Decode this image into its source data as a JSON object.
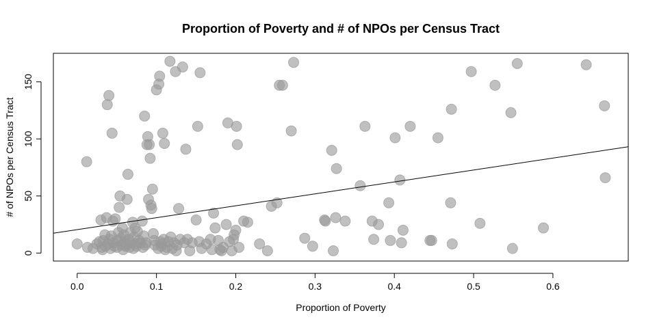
{
  "chart_data": {
    "type": "scatter",
    "title": "Proportion of Poverty and # of NPOs per Census Tract",
    "xlabel": "Proportion of Poverty",
    "ylabel": "# of NPOs per Census Tract",
    "xlim": [
      -0.03,
      0.695
    ],
    "ylim": [
      -7,
      175
    ],
    "xticks": [
      0.0,
      0.1,
      0.2,
      0.3,
      0.4,
      0.5,
      0.6
    ],
    "xtick_labels": [
      "0.0",
      "0.1",
      "0.2",
      "0.3",
      "0.4",
      "0.5",
      "0.6"
    ],
    "yticks": [
      0,
      50,
      100,
      150
    ],
    "ytick_labels": [
      "0",
      "50",
      "100",
      "150"
    ],
    "grid": false,
    "point_color": "#999999",
    "line_color": "#000000",
    "trend_line": {
      "intercept": 20.5,
      "slope": 104.5
    },
    "points": [
      [
        0.0,
        8
      ],
      [
        0.012,
        80
      ],
      [
        0.013,
        5
      ],
      [
        0.02,
        4
      ],
      [
        0.025,
        8
      ],
      [
        0.028,
        10
      ],
      [
        0.03,
        29
      ],
      [
        0.031,
        5
      ],
      [
        0.032,
        3
      ],
      [
        0.033,
        11
      ],
      [
        0.035,
        16
      ],
      [
        0.036,
        6
      ],
      [
        0.037,
        31
      ],
      [
        0.038,
        130
      ],
      [
        0.039,
        8
      ],
      [
        0.04,
        138
      ],
      [
        0.041,
        12
      ],
      [
        0.042,
        4
      ],
      [
        0.043,
        15
      ],
      [
        0.044,
        105
      ],
      [
        0.045,
        28
      ],
      [
        0.046,
        9
      ],
      [
        0.047,
        6
      ],
      [
        0.048,
        30
      ],
      [
        0.05,
        5
      ],
      [
        0.051,
        11
      ],
      [
        0.052,
        18
      ],
      [
        0.053,
        40
      ],
      [
        0.054,
        50
      ],
      [
        0.055,
        13
      ],
      [
        0.056,
        7
      ],
      [
        0.057,
        22
      ],
      [
        0.058,
        3
      ],
      [
        0.059,
        16
      ],
      [
        0.06,
        10
      ],
      [
        0.061,
        6
      ],
      [
        0.062,
        8
      ],
      [
        0.063,
        47
      ],
      [
        0.064,
        69
      ],
      [
        0.065,
        12
      ],
      [
        0.066,
        5
      ],
      [
        0.067,
        18
      ],
      [
        0.068,
        9
      ],
      [
        0.07,
        27
      ],
      [
        0.071,
        4
      ],
      [
        0.072,
        14
      ],
      [
        0.073,
        22
      ],
      [
        0.074,
        8
      ],
      [
        0.075,
        6
      ],
      [
        0.076,
        19
      ],
      [
        0.078,
        11
      ],
      [
        0.08,
        9
      ],
      [
        0.082,
        28
      ],
      [
        0.083,
        5
      ],
      [
        0.084,
        15
      ],
      [
        0.085,
        120
      ],
      [
        0.086,
        7
      ],
      [
        0.087,
        9
      ],
      [
        0.088,
        95
      ],
      [
        0.089,
        102
      ],
      [
        0.09,
        47
      ],
      [
        0.091,
        95
      ],
      [
        0.092,
        83
      ],
      [
        0.093,
        42
      ],
      [
        0.094,
        39
      ],
      [
        0.095,
        56
      ],
      [
        0.096,
        17
      ],
      [
        0.097,
        11
      ],
      [
        0.098,
        7
      ],
      [
        0.1,
        143
      ],
      [
        0.102,
        4
      ],
      [
        0.103,
        148
      ],
      [
        0.104,
        155
      ],
      [
        0.105,
        10
      ],
      [
        0.106,
        6
      ],
      [
        0.107,
        8
      ],
      [
        0.108,
        105
      ],
      [
        0.109,
        12
      ],
      [
        0.11,
        96
      ],
      [
        0.111,
        3
      ],
      [
        0.113,
        5
      ],
      [
        0.115,
        10
      ],
      [
        0.117,
        168
      ],
      [
        0.118,
        14
      ],
      [
        0.12,
        4
      ],
      [
        0.122,
        9
      ],
      [
        0.124,
        159
      ],
      [
        0.125,
        2
      ],
      [
        0.126,
        7
      ],
      [
        0.128,
        39
      ],
      [
        0.13,
        12
      ],
      [
        0.133,
        163
      ],
      [
        0.135,
        9
      ],
      [
        0.137,
        91
      ],
      [
        0.139,
        12
      ],
      [
        0.142,
        2
      ],
      [
        0.145,
        9
      ],
      [
        0.15,
        29
      ],
      [
        0.152,
        111
      ],
      [
        0.154,
        10
      ],
      [
        0.155,
        158
      ],
      [
        0.157,
        4
      ],
      [
        0.163,
        8
      ],
      [
        0.168,
        12
      ],
      [
        0.17,
        3
      ],
      [
        0.172,
        35
      ],
      [
        0.174,
        22
      ],
      [
        0.178,
        11
      ],
      [
        0.18,
        3
      ],
      [
        0.182,
        2
      ],
      [
        0.184,
        5
      ],
      [
        0.188,
        25
      ],
      [
        0.19,
        114
      ],
      [
        0.192,
        10
      ],
      [
        0.195,
        2
      ],
      [
        0.197,
        12
      ],
      [
        0.198,
        16
      ],
      [
        0.2,
        20
      ],
      [
        0.201,
        111
      ],
      [
        0.202,
        95
      ],
      [
        0.204,
        5
      ],
      [
        0.21,
        28
      ],
      [
        0.215,
        27
      ],
      [
        0.23,
        8
      ],
      [
        0.24,
        2
      ],
      [
        0.245,
        41
      ],
      [
        0.252,
        44
      ],
      [
        0.255,
        147
      ],
      [
        0.259,
        147
      ],
      [
        0.27,
        107
      ],
      [
        0.273,
        167
      ],
      [
        0.287,
        13
      ],
      [
        0.297,
        6
      ],
      [
        0.312,
        29
      ],
      [
        0.313,
        28
      ],
      [
        0.321,
        90
      ],
      [
        0.323,
        2
      ],
      [
        0.326,
        31
      ],
      [
        0.327,
        74
      ],
      [
        0.338,
        28
      ],
      [
        0.357,
        59
      ],
      [
        0.363,
        111
      ],
      [
        0.372,
        28
      ],
      [
        0.374,
        12
      ],
      [
        0.38,
        25
      ],
      [
        0.393,
        44
      ],
      [
        0.395,
        11
      ],
      [
        0.401,
        101
      ],
      [
        0.407,
        64
      ],
      [
        0.409,
        9
      ],
      [
        0.411,
        20
      ],
      [
        0.42,
        111
      ],
      [
        0.445,
        11
      ],
      [
        0.447,
        11
      ],
      [
        0.455,
        101
      ],
      [
        0.471,
        44
      ],
      [
        0.472,
        126
      ],
      [
        0.473,
        8
      ],
      [
        0.497,
        159
      ],
      [
        0.508,
        26
      ],
      [
        0.527,
        147
      ],
      [
        0.547,
        123
      ],
      [
        0.549,
        4
      ],
      [
        0.555,
        166
      ],
      [
        0.588,
        22
      ],
      [
        0.642,
        165
      ],
      [
        0.665,
        129
      ],
      [
        0.666,
        66
      ]
    ]
  }
}
